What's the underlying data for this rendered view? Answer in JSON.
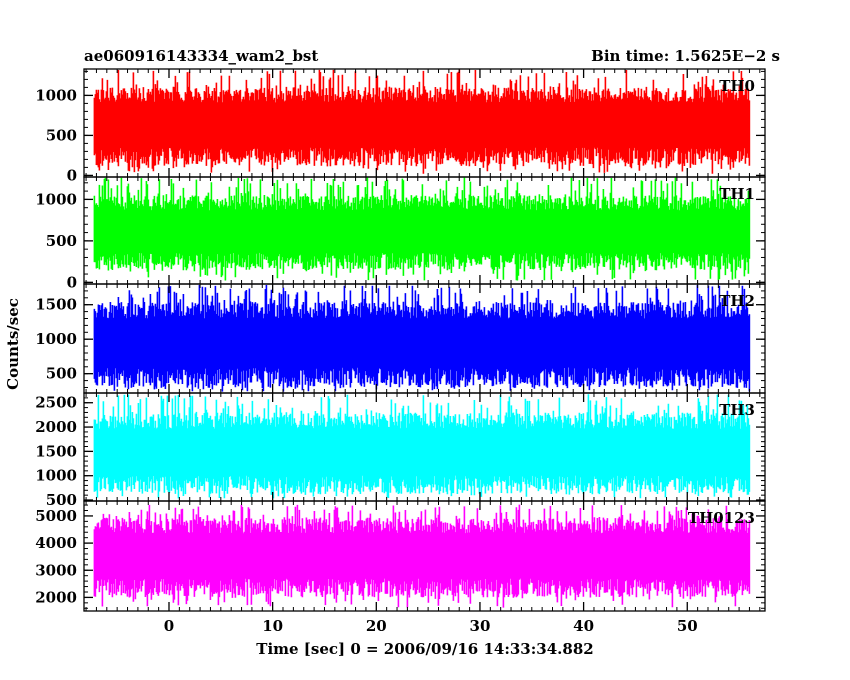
{
  "header": {
    "title": "ae060916143334_wam2_bst",
    "bin_time": "Bin time: 1.5625E−2 s"
  },
  "chart_data": {
    "type": "line",
    "xlabel": "Time [sec] 0 = 2006/09/16 14:33:34.882",
    "ylabel": "Counts/sec",
    "xlim": [
      -8.2,
      57.5
    ],
    "x_ticks": [
      0,
      10,
      20,
      30,
      40,
      50
    ],
    "x_range_data": [
      -7.2,
      56
    ],
    "panels": [
      {
        "name": "TH0",
        "color": "#ff0000",
        "ylim": [
          -20,
          1330
        ],
        "y_ticks": [
          0,
          500,
          1000
        ],
        "mean": 620,
        "base_low": 230,
        "base_high": 1010,
        "spike_low": 20,
        "spike_high": 1320
      },
      {
        "name": "TH1",
        "color": "#00ff00",
        "ylim": [
          -20,
          1270
        ],
        "y_ticks": [
          0,
          500,
          1000
        ],
        "mean": 600,
        "base_low": 250,
        "base_high": 960,
        "spike_low": 20,
        "spike_high": 1270
      },
      {
        "name": "TH2",
        "color": "#0000ff",
        "ylim": [
          220,
          1800
        ],
        "y_ticks": [
          500,
          1000,
          1500
        ],
        "mean": 940,
        "base_low": 440,
        "base_high": 1420,
        "spike_low": 240,
        "spike_high": 1790
      },
      {
        "name": "TH3",
        "color": "#00ffff",
        "ylim": [
          480,
          2700
        ],
        "y_ticks": [
          500,
          1000,
          1500,
          2000,
          2500
        ],
        "mean": 1450,
        "base_low": 810,
        "base_high": 2130,
        "spike_low": 530,
        "spike_high": 2680
      },
      {
        "name": "TH0123",
        "color": "#ff00ff",
        "ylim": [
          1500,
          5550
        ],
        "y_ticks": [
          2000,
          3000,
          4000,
          5000
        ],
        "mean": 3500,
        "base_low": 2350,
        "base_high": 4650,
        "spike_low": 1620,
        "spike_high": 5420
      }
    ]
  }
}
